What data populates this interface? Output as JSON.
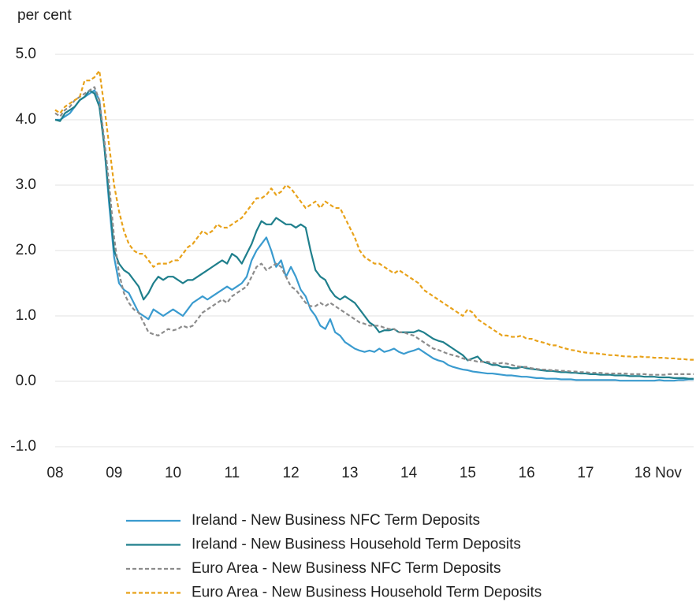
{
  "chart_data": {
    "type": "line",
    "y_label": "per cent",
    "categories": [
      "08",
      null,
      null,
      null,
      null,
      null,
      null,
      null,
      null,
      null,
      null,
      null,
      "09",
      null,
      null,
      null,
      null,
      null,
      null,
      null,
      null,
      null,
      null,
      null,
      "10",
      null,
      null,
      null,
      null,
      null,
      null,
      null,
      null,
      null,
      null,
      null,
      "11",
      null,
      null,
      null,
      null,
      null,
      null,
      null,
      null,
      null,
      null,
      null,
      "12",
      null,
      null,
      null,
      null,
      null,
      null,
      null,
      null,
      null,
      null,
      null,
      "13",
      null,
      null,
      null,
      null,
      null,
      null,
      null,
      null,
      null,
      null,
      null,
      "14",
      null,
      null,
      null,
      null,
      null,
      null,
      null,
      null,
      null,
      null,
      null,
      "15",
      null,
      null,
      null,
      null,
      null,
      null,
      null,
      null,
      null,
      null,
      null,
      "16",
      null,
      null,
      null,
      null,
      null,
      null,
      null,
      null,
      null,
      null,
      null,
      "17",
      null,
      null,
      null,
      null,
      null,
      null,
      null,
      null,
      null,
      null,
      null,
      "18 Nov",
      null,
      null,
      null,
      null,
      null,
      null,
      null,
      null,
      null,
      null
    ],
    "ylim": [
      -1,
      5
    ],
    "yticks": [
      {
        "value": -1,
        "label": "-1.0"
      },
      {
        "value": 0,
        "label": "0.0"
      },
      {
        "value": 1,
        "label": "1.0"
      },
      {
        "value": 2,
        "label": "2.0"
      },
      {
        "value": 3,
        "label": "3.0"
      },
      {
        "value": 4,
        "label": "4.0"
      },
      {
        "value": 5,
        "label": "5.0"
      }
    ],
    "grid": true,
    "legend": "bottom",
    "series": [
      {
        "name": "Ireland - New Business NFC Term Deposits",
        "color": "#3a9bcf",
        "dash": false,
        "values": [
          4.0,
          4.0,
          4.05,
          4.1,
          4.2,
          4.3,
          4.35,
          4.4,
          4.45,
          4.3,
          3.6,
          2.7,
          1.9,
          1.5,
          1.4,
          1.35,
          1.2,
          1.05,
          1.0,
          0.95,
          1.1,
          1.05,
          1.0,
          1.05,
          1.1,
          1.05,
          1.0,
          1.1,
          1.2,
          1.25,
          1.3,
          1.25,
          1.3,
          1.35,
          1.4,
          1.45,
          1.4,
          1.45,
          1.5,
          1.6,
          1.85,
          2.0,
          2.1,
          2.2,
          2.0,
          1.75,
          1.85,
          1.6,
          1.75,
          1.6,
          1.4,
          1.3,
          1.1,
          1.0,
          0.85,
          0.8,
          0.95,
          0.75,
          0.7,
          0.6,
          0.55,
          0.5,
          0.47,
          0.45,
          0.47,
          0.45,
          0.5,
          0.45,
          0.47,
          0.5,
          0.45,
          0.42,
          0.45,
          0.47,
          0.5,
          0.45,
          0.4,
          0.35,
          0.32,
          0.3,
          0.25,
          0.22,
          0.2,
          0.18,
          0.17,
          0.15,
          0.14,
          0.13,
          0.12,
          0.12,
          0.11,
          0.1,
          0.09,
          0.09,
          0.08,
          0.07,
          0.07,
          0.06,
          0.05,
          0.05,
          0.04,
          0.04,
          0.04,
          0.03,
          0.03,
          0.03,
          0.02,
          0.02,
          0.02,
          0.02,
          0.02,
          0.02,
          0.02,
          0.02,
          0.02,
          0.01,
          0.01,
          0.01,
          0.01,
          0.01,
          0.01,
          0.01,
          0.01,
          0.02,
          0.01,
          0.01,
          0.01,
          0.02,
          0.02,
          0.03,
          0.03
        ]
      },
      {
        "name": "Ireland - New Business Household Term Deposits",
        "color": "#1f7f8c",
        "dash": false,
        "values": [
          4.0,
          3.98,
          4.1,
          4.15,
          4.2,
          4.3,
          4.35,
          4.45,
          4.4,
          4.2,
          3.6,
          2.8,
          2.0,
          1.8,
          1.7,
          1.65,
          1.55,
          1.45,
          1.25,
          1.35,
          1.5,
          1.6,
          1.55,
          1.6,
          1.6,
          1.55,
          1.5,
          1.55,
          1.55,
          1.6,
          1.65,
          1.7,
          1.75,
          1.8,
          1.85,
          1.8,
          1.95,
          1.9,
          1.8,
          1.95,
          2.1,
          2.3,
          2.45,
          2.4,
          2.4,
          2.5,
          2.45,
          2.4,
          2.4,
          2.35,
          2.4,
          2.35,
          2.0,
          1.7,
          1.6,
          1.55,
          1.4,
          1.3,
          1.25,
          1.3,
          1.25,
          1.2,
          1.1,
          1.0,
          0.9,
          0.85,
          0.75,
          0.78,
          0.78,
          0.8,
          0.75,
          0.75,
          0.75,
          0.75,
          0.78,
          0.75,
          0.7,
          0.65,
          0.62,
          0.6,
          0.55,
          0.5,
          0.45,
          0.4,
          0.32,
          0.35,
          0.38,
          0.3,
          0.28,
          0.25,
          0.25,
          0.22,
          0.22,
          0.2,
          0.2,
          0.22,
          0.2,
          0.19,
          0.18,
          0.17,
          0.16,
          0.16,
          0.15,
          0.14,
          0.14,
          0.13,
          0.13,
          0.12,
          0.12,
          0.11,
          0.11,
          0.1,
          0.1,
          0.1,
          0.09,
          0.09,
          0.09,
          0.08,
          0.08,
          0.08,
          0.07,
          0.07,
          0.07,
          0.06,
          0.06,
          0.06,
          0.05,
          0.05,
          0.05,
          0.04,
          0.04
        ]
      },
      {
        "name": "Euro Area - New Business NFC Term Deposits",
        "color": "#8c8c8c",
        "dash": true,
        "values": [
          4.1,
          4.05,
          4.15,
          4.2,
          4.3,
          4.35,
          4.4,
          4.45,
          4.5,
          4.3,
          3.7,
          3.0,
          2.2,
          1.65,
          1.35,
          1.2,
          1.1,
          1.05,
          0.9,
          0.75,
          0.72,
          0.7,
          0.75,
          0.8,
          0.78,
          0.8,
          0.85,
          0.82,
          0.85,
          0.95,
          1.05,
          1.1,
          1.15,
          1.2,
          1.25,
          1.2,
          1.3,
          1.35,
          1.4,
          1.45,
          1.6,
          1.75,
          1.8,
          1.7,
          1.75,
          1.8,
          1.75,
          1.6,
          1.45,
          1.4,
          1.3,
          1.2,
          1.15,
          1.15,
          1.2,
          1.15,
          1.2,
          1.15,
          1.1,
          1.05,
          1.0,
          0.95,
          0.9,
          0.88,
          0.85,
          0.85,
          0.85,
          0.82,
          0.8,
          0.8,
          0.75,
          0.75,
          0.72,
          0.7,
          0.65,
          0.6,
          0.55,
          0.5,
          0.48,
          0.45,
          0.42,
          0.4,
          0.38,
          0.35,
          0.33,
          0.32,
          0.3,
          0.3,
          0.3,
          0.28,
          0.27,
          0.28,
          0.27,
          0.25,
          0.23,
          0.22,
          0.22,
          0.2,
          0.19,
          0.18,
          0.18,
          0.17,
          0.17,
          0.16,
          0.16,
          0.15,
          0.15,
          0.14,
          0.14,
          0.13,
          0.13,
          0.13,
          0.12,
          0.12,
          0.12,
          0.12,
          0.12,
          0.11,
          0.11,
          0.11,
          0.11,
          0.1,
          0.1,
          0.1,
          0.1,
          0.11,
          0.11,
          0.11,
          0.11,
          0.11,
          0.11
        ]
      },
      {
        "name": "Euro Area - New Business Household Term Deposits",
        "color": "#e8a21a",
        "dash": true,
        "values": [
          4.15,
          4.1,
          4.2,
          4.25,
          4.3,
          4.35,
          4.6,
          4.6,
          4.65,
          4.75,
          4.2,
          3.6,
          3.0,
          2.6,
          2.3,
          2.1,
          2.0,
          1.95,
          1.95,
          1.85,
          1.75,
          1.8,
          1.8,
          1.8,
          1.85,
          1.85,
          1.95,
          2.05,
          2.1,
          2.2,
          2.3,
          2.25,
          2.3,
          2.4,
          2.35,
          2.35,
          2.4,
          2.45,
          2.5,
          2.6,
          2.7,
          2.8,
          2.8,
          2.85,
          2.95,
          2.85,
          2.9,
          3.0,
          2.95,
          2.85,
          2.75,
          2.65,
          2.7,
          2.75,
          2.65,
          2.75,
          2.7,
          2.65,
          2.65,
          2.5,
          2.35,
          2.2,
          2.0,
          1.9,
          1.85,
          1.8,
          1.8,
          1.75,
          1.7,
          1.65,
          1.7,
          1.65,
          1.6,
          1.55,
          1.5,
          1.4,
          1.35,
          1.3,
          1.25,
          1.2,
          1.15,
          1.1,
          1.05,
          1.0,
          1.1,
          1.05,
          0.95,
          0.9,
          0.85,
          0.8,
          0.75,
          0.7,
          0.7,
          0.68,
          0.68,
          0.7,
          0.65,
          0.65,
          0.62,
          0.6,
          0.58,
          0.55,
          0.55,
          0.52,
          0.5,
          0.48,
          0.47,
          0.45,
          0.44,
          0.43,
          0.43,
          0.42,
          0.41,
          0.4,
          0.4,
          0.39,
          0.38,
          0.38,
          0.37,
          0.38,
          0.37,
          0.37,
          0.36,
          0.36,
          0.36,
          0.35,
          0.35,
          0.34,
          0.34,
          0.33,
          0.33
        ]
      }
    ]
  }
}
